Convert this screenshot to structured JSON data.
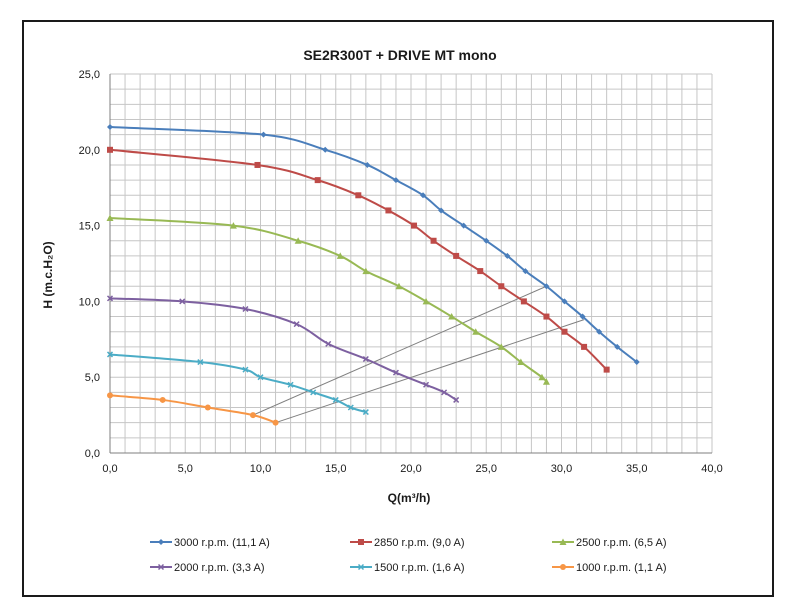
{
  "chart_data": {
    "type": "line",
    "title": "SE2R300T + DRIVE MT mono",
    "xlabel": "Q(m³/h)",
    "ylabel": "H (m.c.H₂O)",
    "xlim": [
      0,
      40
    ],
    "ylim": [
      0,
      25
    ],
    "xticks": [
      "0,0",
      "5,0",
      "10,0",
      "15,0",
      "20,0",
      "25,0",
      "30,0",
      "35,0",
      "40,0"
    ],
    "yticks": [
      "0,0",
      "5,0",
      "10,0",
      "15,0",
      "20,0",
      "25,0"
    ],
    "x_tick_values": [
      0,
      5,
      10,
      15,
      20,
      25,
      30,
      35,
      40
    ],
    "y_tick_values": [
      0,
      5,
      10,
      15,
      20,
      25
    ],
    "grid": true,
    "legend_position": "bottom",
    "series": [
      {
        "name": "3000 r.p.m. (11,1 A)",
        "color": "#4a7ebb",
        "marker": "diamond",
        "points": [
          [
            0,
            21.5
          ],
          [
            10.2,
            21.0
          ],
          [
            14.3,
            20.0
          ],
          [
            17.1,
            19.0
          ],
          [
            19,
            18.0
          ],
          [
            20.8,
            17.0
          ],
          [
            22,
            16.0
          ],
          [
            23.5,
            15.0
          ],
          [
            25,
            14.0
          ],
          [
            26.4,
            13.0
          ],
          [
            27.6,
            12.0
          ],
          [
            29,
            11.0
          ],
          [
            30.2,
            10.0
          ],
          [
            31.4,
            9.0
          ],
          [
            32.5,
            8.0
          ],
          [
            33.7,
            7.0
          ],
          [
            35,
            6.0
          ]
        ]
      },
      {
        "name": "2850 r.p.m. (9,0 A)",
        "color": "#be4b48",
        "marker": "square",
        "points": [
          [
            0,
            20.0
          ],
          [
            9.8,
            19.0
          ],
          [
            13.8,
            18.0
          ],
          [
            16.5,
            17.0
          ],
          [
            18.5,
            16.0
          ],
          [
            20.2,
            15.0
          ],
          [
            21.5,
            14.0
          ],
          [
            23,
            13.0
          ],
          [
            24.6,
            12.0
          ],
          [
            26,
            11.0
          ],
          [
            27.5,
            10.0
          ],
          [
            29,
            9.0
          ],
          [
            30.2,
            8.0
          ],
          [
            31.5,
            7.0
          ],
          [
            33,
            5.5
          ]
        ]
      },
      {
        "name": "2500 r.p.m. (6,5 A)",
        "color": "#98b954",
        "marker": "triangle",
        "points": [
          [
            0,
            15.5
          ],
          [
            8.2,
            15.0
          ],
          [
            12.5,
            14.0
          ],
          [
            15.3,
            13.0
          ],
          [
            17,
            12.0
          ],
          [
            19.2,
            11.0
          ],
          [
            21,
            10.0
          ],
          [
            22.7,
            9.0
          ],
          [
            24.3,
            8.0
          ],
          [
            26,
            7.0
          ],
          [
            27.3,
            6.0
          ],
          [
            28.7,
            5.0
          ],
          [
            29,
            4.7
          ]
        ]
      },
      {
        "name": "2000 r.p.m. (3,3 A)",
        "color": "#7d60a0",
        "marker": "x",
        "points": [
          [
            0,
            10.2
          ],
          [
            4.8,
            10.0
          ],
          [
            9,
            9.5
          ],
          [
            12.4,
            8.5
          ],
          [
            14.5,
            7.2
          ],
          [
            17,
            6.2
          ],
          [
            19,
            5.3
          ],
          [
            21,
            4.5
          ],
          [
            22.2,
            4.0
          ],
          [
            23,
            3.5
          ]
        ]
      },
      {
        "name": "1500 r.p.m. (1,6 A)",
        "color": "#4bacc6",
        "marker": "x",
        "points": [
          [
            0,
            6.5
          ],
          [
            6,
            6.0
          ],
          [
            9,
            5.5
          ],
          [
            10,
            5.0
          ],
          [
            12,
            4.5
          ],
          [
            13.5,
            4.0
          ],
          [
            15,
            3.5
          ],
          [
            16,
            3.0
          ],
          [
            17,
            2.7
          ]
        ]
      },
      {
        "name": "1000 r.p.m. (1,1 A)",
        "color": "#f79646",
        "marker": "circle",
        "points": [
          [
            0,
            3.8
          ],
          [
            3.5,
            3.5
          ],
          [
            6.5,
            3.0
          ],
          [
            9.5,
            2.5
          ],
          [
            11,
            2.0
          ]
        ]
      }
    ],
    "operating_lines": [
      [
        [
          9.5,
          2.5
        ],
        [
          29,
          11.0
        ]
      ],
      [
        [
          11,
          2.0
        ],
        [
          31.5,
          8.8
        ]
      ]
    ]
  }
}
